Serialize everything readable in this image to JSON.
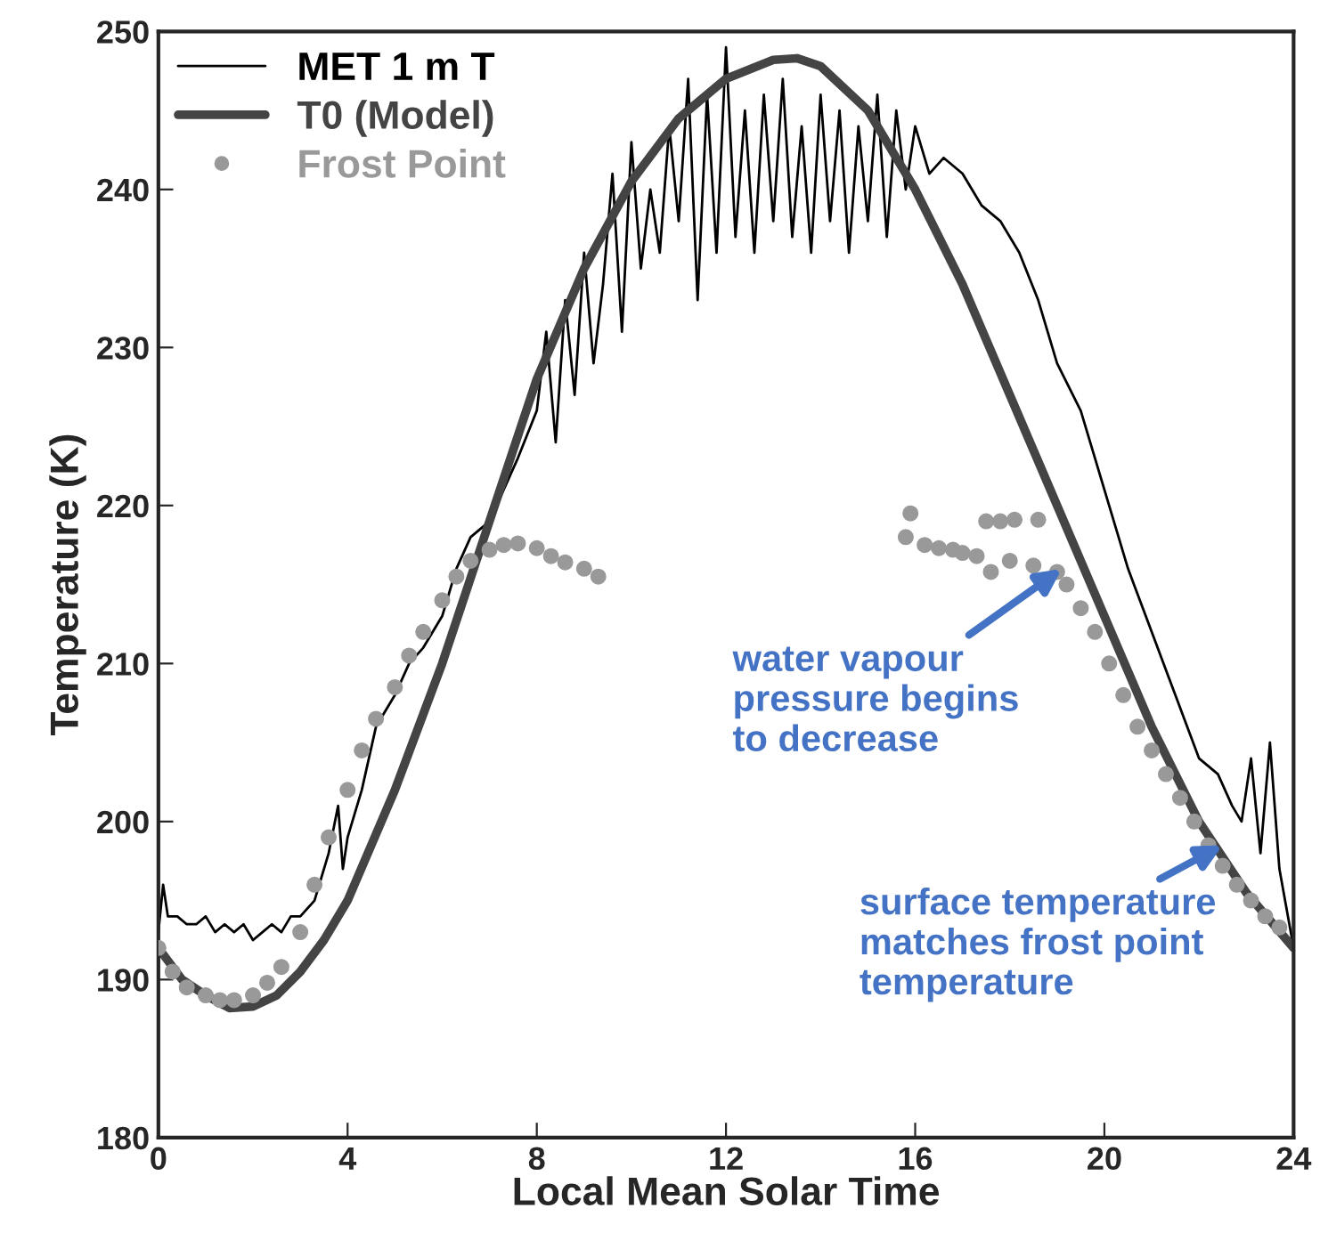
{
  "chart_data": {
    "type": "line",
    "xlabel": "Local Mean Solar Time",
    "ylabel": "Temperature (K)",
    "xlim": [
      0,
      24
    ],
    "ylim": [
      180,
      250
    ],
    "xticks": [
      0,
      4,
      8,
      12,
      16,
      20,
      24
    ],
    "yticks": [
      180,
      190,
      200,
      210,
      220,
      230,
      240,
      250
    ],
    "grid": false,
    "legend": "top left",
    "series": [
      {
        "name": "MET 1 m T",
        "color": "#000000",
        "x": [
          0,
          0.1,
          0.2,
          0.4,
          0.6,
          0.8,
          1.0,
          1.2,
          1.4,
          1.6,
          1.8,
          2.0,
          2.2,
          2.4,
          2.6,
          2.8,
          3.0,
          3.3,
          3.6,
          3.8,
          3.9,
          4.0,
          4.3,
          4.6,
          5.0,
          5.3,
          5.6,
          6.0,
          6.3,
          6.6,
          7.0,
          7.3,
          7.6,
          8.0,
          8.2,
          8.4,
          8.6,
          8.8,
          9.0,
          9.2,
          9.4,
          9.6,
          9.8,
          10.0,
          10.2,
          10.4,
          10.6,
          10.8,
          11.0,
          11.2,
          11.4,
          11.6,
          11.8,
          12.0,
          12.2,
          12.4,
          12.6,
          12.8,
          13.0,
          13.2,
          13.4,
          13.6,
          13.8,
          14.0,
          14.2,
          14.4,
          14.6,
          14.8,
          15.0,
          15.2,
          15.4,
          15.6,
          15.8,
          16.0,
          16.3,
          16.6,
          17.0,
          17.4,
          17.8,
          18.2,
          18.6,
          19.0,
          19.5,
          20.0,
          20.5,
          21.0,
          21.5,
          22.0,
          22.4,
          22.7,
          22.9,
          23.1,
          23.3,
          23.5,
          23.7,
          24.0
        ],
        "values": [
          193,
          196,
          194,
          194,
          193.5,
          193.5,
          194,
          193,
          193.5,
          193,
          193.5,
          192.5,
          193,
          193.5,
          193,
          194,
          194,
          195,
          198,
          201,
          197,
          199,
          202,
          206,
          208,
          210,
          211,
          213,
          216,
          218,
          219,
          221,
          223,
          226,
          231,
          224,
          233,
          227,
          236,
          229,
          234,
          241,
          231,
          243,
          235,
          240,
          236,
          244,
          238,
          247,
          233,
          246,
          236,
          249,
          237,
          245,
          236,
          246,
          238,
          247,
          237,
          244,
          236,
          246,
          238,
          245,
          236,
          244,
          238,
          246,
          237,
          245,
          240,
          244,
          241,
          242,
          241,
          239,
          238,
          236,
          233,
          229,
          226,
          221,
          216,
          212,
          208,
          204,
          203,
          201,
          200,
          204,
          198,
          205,
          197,
          192
        ]
      },
      {
        "name": "T0 (Model)",
        "color": "#444444",
        "x": [
          0,
          0.5,
          1.0,
          1.5,
          2.0,
          2.5,
          3.0,
          3.5,
          4.0,
          5.0,
          6.0,
          7.0,
          8.0,
          9.0,
          10.0,
          11.0,
          12.0,
          13.0,
          13.5,
          14.0,
          15.0,
          16.0,
          17.0,
          18.0,
          19.0,
          20.0,
          21.0,
          22.0,
          23.0,
          24.0
        ],
        "values": [
          192,
          190,
          189,
          188.2,
          188.3,
          189,
          190.5,
          192.5,
          195,
          202,
          210,
          219,
          228,
          235,
          240.5,
          244.5,
          247,
          248.2,
          248.3,
          247.8,
          245,
          240,
          234,
          227,
          220,
          213,
          206,
          200,
          195.5,
          192
        ]
      },
      {
        "name": "Frost Point",
        "type": "scatter",
        "color": "#999999",
        "marker": "circle",
        "x": [
          0,
          0.3,
          0.6,
          1.0,
          1.3,
          1.6,
          2.0,
          2.3,
          2.6,
          3.0,
          3.3,
          3.6,
          4.0,
          4.3,
          4.6,
          5.0,
          5.3,
          5.6,
          6.0,
          6.3,
          6.6,
          7.0,
          7.3,
          7.6,
          8.0,
          8.3,
          8.6,
          9.0,
          9.3,
          15.8,
          15.9,
          16.2,
          16.5,
          16.8,
          17.0,
          17.3,
          17.5,
          17.6,
          17.8,
          18.0,
          18.1,
          18.5,
          18.6,
          19.0,
          19.2,
          19.5,
          19.8,
          20.1,
          20.4,
          20.7,
          21.0,
          21.3,
          21.6,
          21.9,
          22.2,
          22.5,
          22.8,
          23.1,
          23.4,
          23.7
        ],
        "values": [
          192,
          190.5,
          189.5,
          189,
          188.7,
          188.7,
          189,
          189.8,
          190.8,
          193,
          196,
          199,
          202,
          204.5,
          206.5,
          208.5,
          210.5,
          212,
          214,
          215.5,
          216.5,
          217.2,
          217.5,
          217.6,
          217.3,
          216.8,
          216.4,
          216,
          215.5,
          218,
          219.5,
          217.5,
          217.3,
          217.2,
          217,
          216.8,
          219,
          215.8,
          219,
          216.5,
          219.1,
          216.2,
          219.1,
          215.8,
          215,
          213.5,
          212,
          210,
          208,
          206,
          204.5,
          203,
          201.5,
          200,
          198.5,
          197.2,
          196,
          195,
          194,
          193.3
        ]
      }
    ],
    "annotations": [
      {
        "text": "water vapour\npressure begins\nto decrease",
        "x": 19.1,
        "y": 216
      },
      {
        "text": "surface temperature\nmatches frost point\ntemperature",
        "x": 22.5,
        "y": 198.5
      }
    ]
  }
}
